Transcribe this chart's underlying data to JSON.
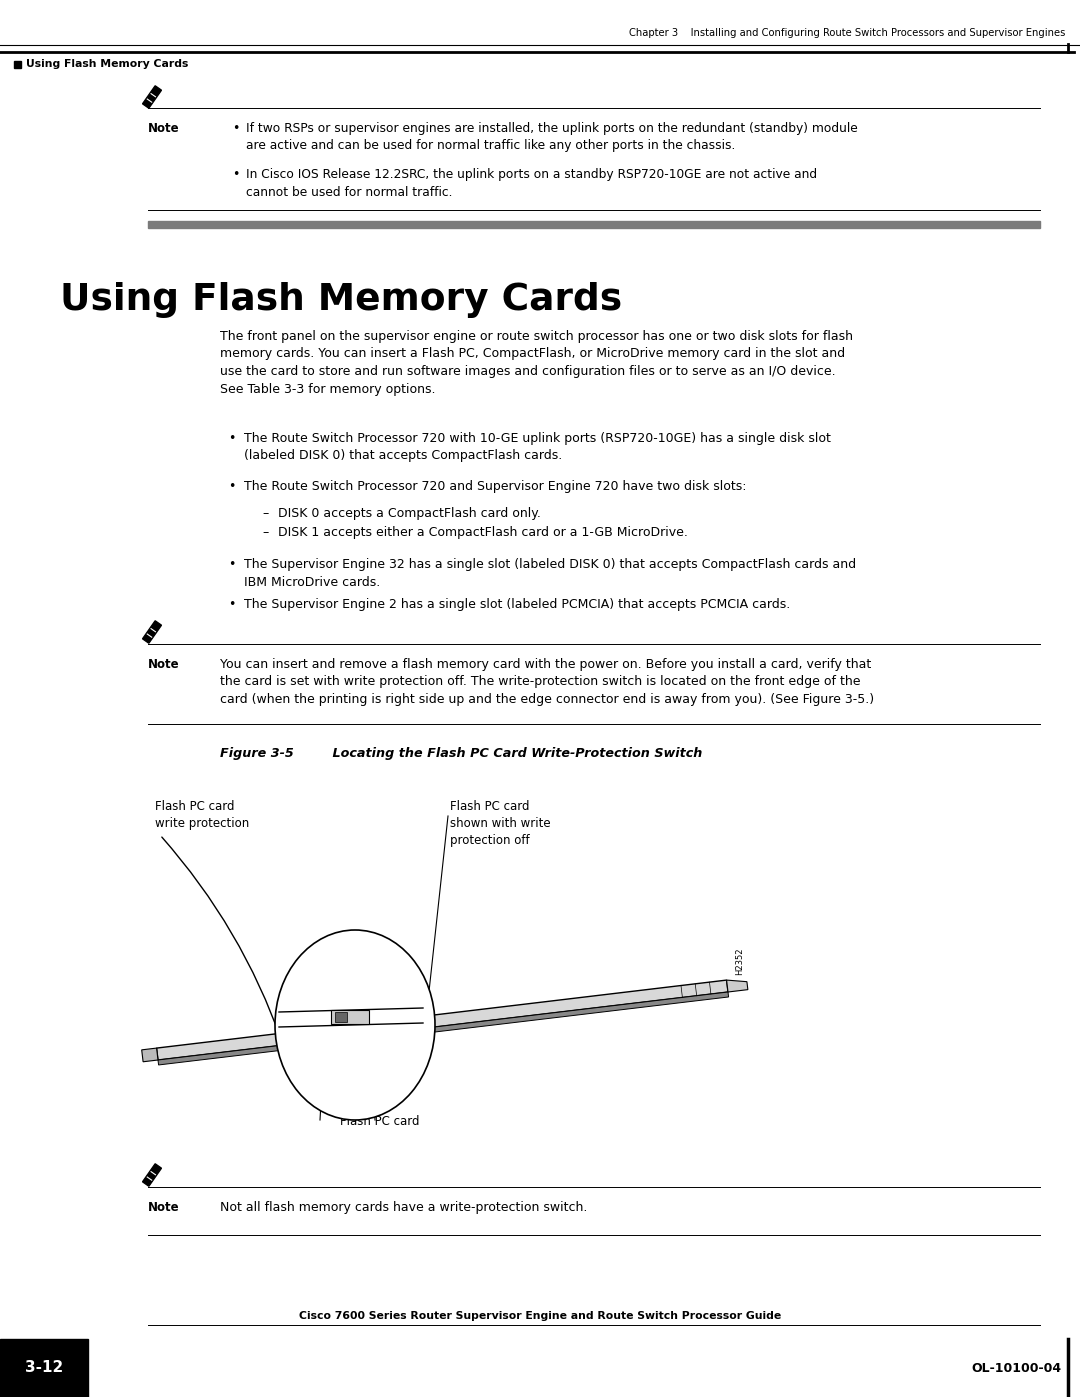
{
  "page_bg": "#ffffff",
  "header_chapter": "Chapter 3    Installing and Configuring Route Switch Processors and Supervisor Engines",
  "header_section": "Using Flash Memory Cards",
  "footer_guide": "Cisco 7600 Series Router Supervisor Engine and Route Switch Processor Guide",
  "footer_page": "3-12",
  "footer_doc": "OL-10100-04",
  "section_title": "Using Flash Memory Cards",
  "note1_b1": "If two RSPs or supervisor engines are installed, the uplink ports on the redundant (standby) module\nare active and can be used for normal traffic like any other ports in the chassis.",
  "note1_b2": "In Cisco IOS Release 12.2SRC, the uplink ports on a standby RSP720-10GE are not active and\ncannot be used for normal traffic.",
  "body_text1": "The front panel on the supervisor engine or route switch processor has one or two disk slots for flash\nmemory cards. You can insert a Flash PC, CompactFlash, or MicroDrive memory card in the slot and\nuse the card to store and run software images and configuration files or to serve as an I/O device.\nSee Table 3-3 for memory options.",
  "b1": "The Route Switch Processor 720 with 10-GE uplink ports (RSP720-10GE) has a single disk slot\n(labeled DISK 0) that accepts CompactFlash cards.",
  "b2": "The Route Switch Processor 720 and Supervisor Engine 720 have two disk slots:",
  "sb1": "DISK 0 accepts a CompactFlash card only.",
  "sb2": "DISK 1 accepts either a CompactFlash card or a 1-GB MicroDrive.",
  "b3": "The Supervisor Engine 32 has a single slot (labeled DISK 0) that accepts CompactFlash cards and\nIBM MicroDrive cards.",
  "b4": "The Supervisor Engine 2 has a single slot (labeled PCMCIA) that accepts PCMCIA cards.",
  "note2_text": "You can insert and remove a flash memory card with the power on. Before you install a card, verify that\nthe card is set with write protection off. The write-protection switch is located on the front edge of the\ncard (when the printing is right side up and the edge connector end is away from you). (See Figure 3-5.)",
  "fig_caption_a": "Figure 3-5",
  "fig_caption_b": "     Locating the Flash PC Card Write-Protection Switch",
  "fig_label1": "Flash PC card\nwrite protection",
  "fig_label2": "Flash PC card\nshown with write\nprotection off",
  "fig_label3": "Flash PC card",
  "fig_code": "H2352",
  "note3_text": "Not all flash memory cards have a write-protection switch."
}
